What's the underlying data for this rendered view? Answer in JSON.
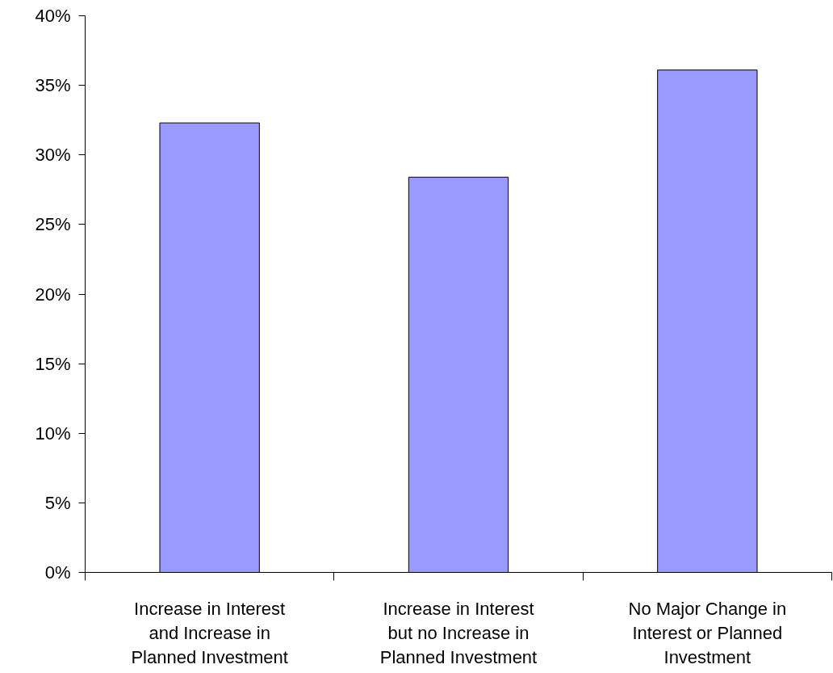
{
  "chart_data": {
    "type": "bar",
    "categories": [
      "Increase in Interest and Increase in Planned Investment",
      "Increase in Interest but no Increase in Planned Investment",
      "No Major Change in Interest or Planned Investment"
    ],
    "values": [
      32.3,
      28.4,
      36.1
    ],
    "color": "#9999ff",
    "ylim": [
      0,
      40
    ],
    "yticks": [
      {
        "value": 0,
        "label": "0%"
      },
      {
        "value": 5,
        "label": "5%"
      },
      {
        "value": 10,
        "label": "10%"
      },
      {
        "value": 15,
        "label": "15%"
      },
      {
        "value": 20,
        "label": "20%"
      },
      {
        "value": 25,
        "label": "25%"
      },
      {
        "value": 30,
        "label": "30%"
      },
      {
        "value": 35,
        "label": "35%"
      },
      {
        "value": 40,
        "label": "40%"
      }
    ],
    "grid": false
  }
}
